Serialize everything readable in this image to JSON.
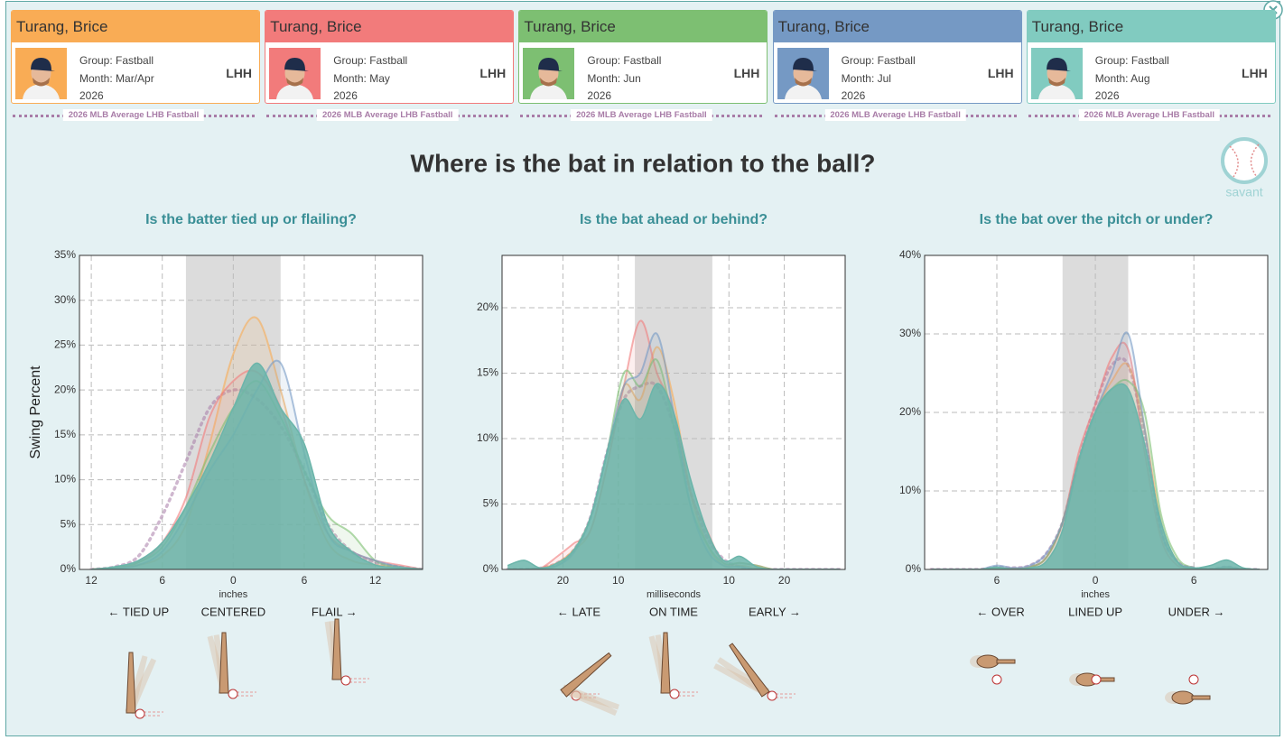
{
  "cards": [
    {
      "name": "Turang, Brice",
      "group": "Group: Fastball",
      "month": "Month: Mar/Apr",
      "year": "2026",
      "hand": "LHH",
      "color": "#f9ac55"
    },
    {
      "name": "Turang, Brice",
      "group": "Group: Fastball",
      "month": "Month: May",
      "year": "2026",
      "hand": "LHH",
      "color": "#f27b7b"
    },
    {
      "name": "Turang, Brice",
      "group": "Group: Fastball",
      "month": "Month: Jun",
      "year": "2026",
      "hand": "LHH",
      "color": "#7dbf72"
    },
    {
      "name": "Turang, Brice",
      "group": "Group: Fastball",
      "month": "Month: Jul",
      "year": "2026",
      "hand": "LHH",
      "color": "#7599c4"
    },
    {
      "name": "Turang, Brice",
      "group": "Group: Fastball",
      "month": "Month: Aug",
      "year": "2026",
      "hand": "LHH",
      "color": "#81cbc0"
    }
  ],
  "average_label": "2026 MLB Average LHB Fastball",
  "average_color": "#a87ca7",
  "title": "Where is the bat in relation to the ball?",
  "logo": "savant",
  "chart_data": [
    {
      "type": "area",
      "subtitle": "Is the batter tied up or flailing?",
      "xlabel": "inches",
      "ylabel": "Swing Percent",
      "directions": [
        "← TIED UP",
        "CENTERED",
        "FLAIL →"
      ],
      "x": [
        -12,
        -10,
        -8,
        -6,
        -4,
        -2,
        0,
        2,
        4,
        6,
        8,
        10,
        12,
        14,
        16
      ],
      "xlim": [
        -13,
        16
      ],
      "ylim": [
        0,
        35
      ],
      "band": [
        -4,
        4
      ],
      "grid": true,
      "xticks": [
        {
          "value": -12,
          "label": "12"
        },
        {
          "value": -6,
          "label": "6"
        },
        0,
        6,
        12
      ],
      "yticks": [
        {
          "value": 0,
          "label": "0%"
        },
        {
          "value": 5,
          "label": "5%"
        },
        {
          "value": 10,
          "label": "10%"
        },
        {
          "value": 15,
          "label": "15%"
        },
        {
          "value": 20,
          "label": "20%"
        },
        {
          "value": 25,
          "label": "25%"
        },
        {
          "value": 30,
          "label": "30%"
        },
        {
          "value": 35,
          "label": "35%"
        }
      ],
      "series": [
        {
          "color": "#a87ca7",
          "style": "dotted",
          "values": [
            0,
            0.3,
            1.5,
            6,
            12,
            18,
            20,
            19,
            16,
            11,
            5,
            2,
            0.8,
            0.3,
            0
          ]
        },
        {
          "color": "#f9ac55",
          "values": [
            0,
            0.2,
            0.5,
            1.5,
            5,
            14,
            24,
            28,
            20,
            10,
            3,
            1,
            0.5,
            0.2,
            0
          ]
        },
        {
          "color": "#f27b7b",
          "values": [
            0,
            0.2,
            0.8,
            3,
            8,
            17,
            21,
            22,
            18,
            10,
            4,
            2,
            1,
            0.5,
            0
          ]
        },
        {
          "color": "#7dbf72",
          "values": [
            0,
            0.2,
            0.8,
            2.5,
            7,
            13,
            18,
            21,
            17,
            11,
            6,
            4,
            1,
            0.3,
            0
          ]
        },
        {
          "color": "#7599c4",
          "values": [
            0,
            0.1,
            0.5,
            2,
            6,
            11,
            15,
            20,
            23,
            13,
            4,
            2,
            1,
            0.3,
            0
          ]
        },
        {
          "color": "#6bb5aa",
          "area": true,
          "values": [
            0,
            0.3,
            1,
            3,
            7,
            12,
            18,
            23,
            18,
            14,
            5,
            2,
            0.5,
            0.2,
            0
          ]
        }
      ]
    },
    {
      "type": "area",
      "subtitle": "Is the bat ahead or behind?",
      "xlabel": "milliseconds",
      "directions": [
        "← LATE",
        "ON TIME",
        "EARLY →"
      ],
      "x": [
        -30,
        -27,
        -24,
        -21,
        -18,
        -15,
        -12,
        -9,
        -6,
        -3,
        0,
        3,
        6,
        9,
        12,
        15,
        18,
        21,
        24,
        27,
        30
      ],
      "xlim": [
        -31,
        31
      ],
      "ylim": [
        0,
        24
      ],
      "band": [
        -7,
        7
      ],
      "grid": true,
      "xticks": [
        {
          "value": -20,
          "label": "20"
        },
        {
          "value": -10,
          "label": "10"
        },
        10,
        20
      ],
      "yticks": [
        {
          "value": 0,
          "label": "0%"
        },
        {
          "value": 5,
          "label": "5%"
        },
        {
          "value": 10,
          "label": "10%"
        },
        {
          "value": 15,
          "label": "15%"
        },
        {
          "value": 20,
          "label": "20%"
        }
      ],
      "series": [
        {
          "color": "#a87ca7",
          "style": "dotted",
          "values": [
            0,
            0,
            0.1,
            0.5,
            1.5,
            4,
            9,
            13,
            14,
            14,
            11,
            6,
            2.5,
            0.8,
            0.2,
            0,
            0,
            0,
            0,
            0,
            0
          ]
        },
        {
          "color": "#f9ac55",
          "values": [
            0,
            0,
            0.1,
            0.5,
            1.5,
            3,
            8,
            14,
            13,
            17,
            13,
            6,
            2,
            0.3,
            0.3,
            0.1,
            0,
            0,
            0,
            0,
            0
          ]
        },
        {
          "color": "#f27b7b",
          "values": [
            0,
            0,
            0.1,
            1,
            2,
            3,
            8,
            14,
            19,
            15,
            12,
            6,
            3,
            0.5,
            0.5,
            0.3,
            0,
            0,
            0,
            0,
            0
          ]
        },
        {
          "color": "#7dbf72",
          "values": [
            0,
            0,
            0.1,
            0.3,
            1.5,
            4,
            9,
            15,
            14,
            16,
            11,
            5,
            2,
            0.5,
            0.5,
            0.3,
            0,
            0,
            0,
            0,
            0
          ]
        },
        {
          "color": "#7599c4",
          "values": [
            0,
            0,
            0.1,
            0.3,
            1.3,
            4,
            9,
            14,
            15,
            18,
            12,
            5,
            1.5,
            0.3,
            0.2,
            0,
            0,
            0,
            0,
            0,
            0
          ]
        },
        {
          "color": "#6bb5aa",
          "area": true,
          "values": [
            0.3,
            0.7,
            0.1,
            0.5,
            1.5,
            4,
            9,
            13,
            11.5,
            14.2,
            12,
            7,
            3,
            0.7,
            1,
            0.2,
            0,
            0,
            0,
            0,
            0
          ]
        }
      ]
    },
    {
      "type": "area",
      "subtitle": "Is the bat over the pitch or under?",
      "xlabel": "inches",
      "directions": [
        "← OVER",
        "LINED UP",
        "UNDER →"
      ],
      "x": [
        -10,
        -9,
        -8,
        -7,
        -6,
        -5,
        -4,
        -3,
        -2,
        -1,
        0,
        1,
        2,
        3,
        4,
        5,
        6,
        7,
        8,
        9,
        10
      ],
      "xlim": [
        -10.4,
        10.5
      ],
      "ylim": [
        0,
        40
      ],
      "band": [
        -2,
        2
      ],
      "grid": true,
      "xticks": [
        {
          "value": -6,
          "label": "6"
        },
        0,
        6
      ],
      "yticks": [
        {
          "value": 0,
          "label": "0%"
        },
        {
          "value": 10,
          "label": "10%"
        },
        {
          "value": 20,
          "label": "20%"
        },
        {
          "value": 30,
          "label": "30%"
        },
        {
          "value": 40,
          "label": "40%"
        }
      ],
      "series": [
        {
          "color": "#a87ca7",
          "style": "dotted",
          "values": [
            0,
            0,
            0,
            0,
            0.3,
            0.2,
            0.5,
            2,
            6,
            14,
            21,
            26,
            26,
            17,
            5,
            1,
            0.2,
            0,
            0.3,
            0,
            0
          ]
        },
        {
          "color": "#f9ac55",
          "values": [
            0,
            0,
            0,
            0,
            0.2,
            0.1,
            0.3,
            1.5,
            6,
            14,
            20,
            24,
            26,
            18,
            6,
            1,
            0.1,
            0,
            0.2,
            0,
            0
          ]
        },
        {
          "color": "#f27b7b",
          "values": [
            0,
            0,
            0,
            0,
            0.2,
            0.1,
            0.3,
            1.5,
            6,
            15,
            21,
            27,
            28,
            15,
            4,
            0.5,
            0.1,
            0,
            0.2,
            0,
            0
          ]
        },
        {
          "color": "#7dbf72",
          "values": [
            0,
            0,
            0,
            0,
            0.2,
            0.1,
            0.3,
            1.5,
            6,
            14,
            20,
            23,
            24,
            20,
            7,
            1.5,
            0.2,
            0,
            0.3,
            0,
            0
          ]
        },
        {
          "color": "#7599c4",
          "values": [
            0,
            0,
            0,
            0,
            0.5,
            0.2,
            0.5,
            2,
            6,
            14,
            20,
            25,
            30,
            18,
            5,
            1,
            0.2,
            0,
            0.3,
            0,
            0
          ]
        },
        {
          "color": "#6bb5aa",
          "area": true,
          "values": [
            0,
            0,
            0,
            0,
            0.3,
            0,
            0.2,
            1,
            5,
            14,
            20,
            23,
            23,
            16,
            6,
            1,
            0.2,
            0.5,
            1.2,
            0.2,
            0
          ]
        }
      ]
    }
  ]
}
